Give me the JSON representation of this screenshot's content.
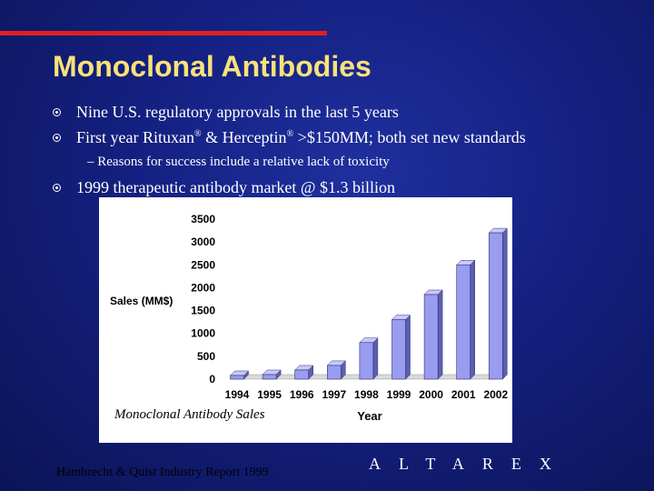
{
  "slide": {
    "title": "Monoclonal Antibodies",
    "bullets": [
      {
        "text": "Nine U.S. regulatory approvals in the last 5 years"
      },
      {
        "text_parts": [
          "First year Rituxan",
          "®",
          " & Herceptin",
          "®",
          " >$150MM; both set new standards"
        ]
      },
      {
        "text": "1999 therapeutic antibody market @ $1.3 billion"
      }
    ],
    "sub_bullet": "– Reasons for success include a relative lack of toxicity",
    "caption": "Monoclonal Antibody Sales",
    "source": "Hambrecht & Quist Industry Report 1999",
    "brand": "ALTAREX"
  },
  "colors": {
    "title": "#f7e27a",
    "accent_bar": "#e02020",
    "bar_front": "#9a9cf0",
    "bar_side": "#5c5fb0",
    "bar_top": "#c8c9fa"
  },
  "chart_data": {
    "type": "bar",
    "categories": [
      "1994",
      "1995",
      "1996",
      "1997",
      "1998",
      "1999",
      "2000",
      "2001",
      "2002"
    ],
    "values": [
      80,
      100,
      200,
      300,
      800,
      1300,
      1850,
      2500,
      3200
    ],
    "xlabel": "Year",
    "ylabel": "Sales (MM$)",
    "ylim": [
      0,
      3500
    ],
    "yticks": [
      0,
      500,
      1000,
      1500,
      2000,
      2500,
      3000,
      3500
    ],
    "grid": false,
    "legend": "none"
  }
}
